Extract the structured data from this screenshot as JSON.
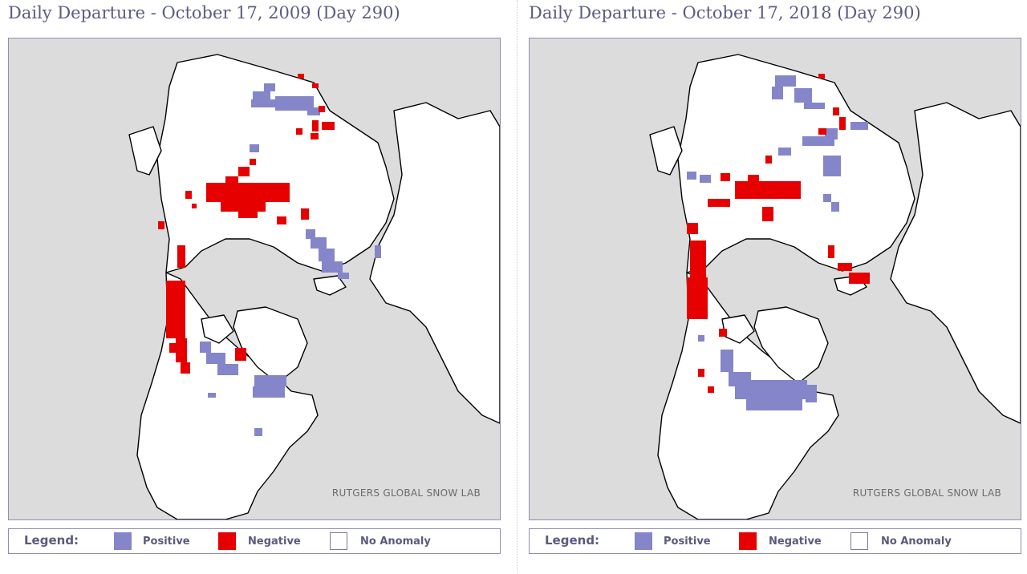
{
  "colors": {
    "positive": "#8585c9",
    "negative": "#e60000",
    "no_anomaly": "#ffffff",
    "ocean": "#dcdcdc",
    "title": "#5c5c82"
  },
  "panels": [
    {
      "title": "Daily Departure - October 17, 2009 (Day 290)",
      "watermark": "RUTGERS GLOBAL SNOW LAB",
      "legend": {
        "title": "Legend:",
        "positive": "Positive",
        "negative": "Negative",
        "no_anomaly": "No Anomaly"
      }
    },
    {
      "title": "Daily Departure - October 17, 2018 (Day 290)",
      "watermark": "RUTGERS GLOBAL SNOW LAB",
      "legend": {
        "title": "Legend:",
        "positive": "Positive",
        "negative": "Negative",
        "no_anomaly": "No Anomaly"
      }
    }
  ]
}
